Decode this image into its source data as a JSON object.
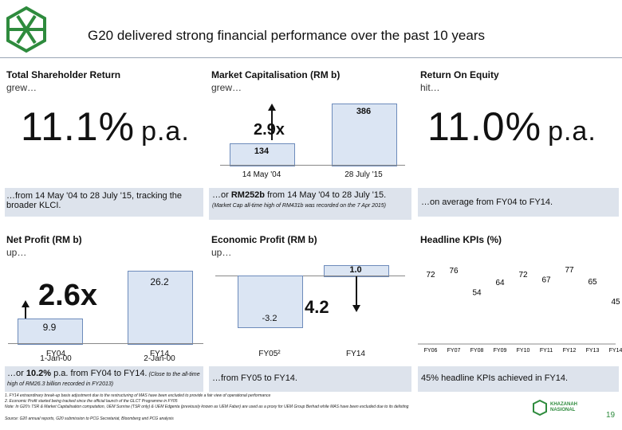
{
  "title": "G20 delivered strong financial performance over the past 10 years",
  "panels": {
    "tsr": {
      "heading": "Total Shareholder Return",
      "sub": "grew…",
      "big": "11.1%",
      "pa": "p.a.",
      "note": "…from 14 May '04 to 28 July '15, tracking the broader KLCI."
    },
    "mcap": {
      "heading": "Market Capitalisation (RM b)",
      "sub": "grew…",
      "mult": "2.9x",
      "bar1_value": "134",
      "bar2_value": "386",
      "x1": "14 May '04",
      "x2": "28 July '15",
      "note_prefix": "…or ",
      "note_bold": "RM252b",
      "note_rest": " from 14 May '04 to 28 July '15.",
      "note_small": "(Market Cap all-time high of RM431b was recorded on the 7 Apr 2015)"
    },
    "roe": {
      "heading": "Return On Equity",
      "sub": "hit…",
      "big": "11.0%",
      "pa": "p.a.",
      "note": "…on average from FY04 to FY14."
    },
    "np": {
      "heading": "Net Profit (RM b)",
      "sub": "up…",
      "mult": "2.6x",
      "bar1_value": "9.9",
      "bar2_value": "26.2",
      "x1": "FY04",
      "x1b": "1-Jan-00",
      "x2": "FY14",
      "x2b": "2-Jan-00",
      "note_prefix": "…or ",
      "note_bold": "10.2%",
      "note_rest": " p.a. from FY04 to FY14.",
      "note_small": " (Close to the all-time high of RM26.3 billion recorded in FY2013)"
    },
    "ep": {
      "heading": "Economic Profit (RM b)",
      "sub": "up…",
      "mult": "4.2",
      "bar1_value": "-3.2",
      "bar2_value": "1.0",
      "x1": "FY05²",
      "x2": "FY14",
      "note": "…from FY05 to FY14."
    },
    "kpi": {
      "heading": "Headline KPIs (%)",
      "note": "45% headline KPIs achieved in FY14."
    }
  },
  "chart_data": {
    "type": "line",
    "title": "Headline KPIs (%)",
    "categories": [
      "FY06",
      "FY07",
      "FY08",
      "FY09",
      "FY10",
      "FY11",
      "FY12",
      "FY13",
      "FY14"
    ],
    "values": [
      72,
      76,
      54,
      64,
      72,
      67,
      77,
      65,
      45
    ]
  },
  "footnotes": {
    "f1": "1.    FY14 extraordinary break-up basis adjustment due to the restructuring of MAS have been excluded to provide a fair view of operational performance",
    "f2": "2.    Economic Profit started being tracked since the official launch of the GLCT Programme in FY05",
    "f3": "Note: In G20's TSR & Market Capitalisation computation, UEM Sunrise (TSR only) & UEM Edgenta (previously known as UEM Faber) are used as a proxy for UEM Group Berhad while MAS have been excluded due to its delisting",
    "f4": "Source: G20 annual reports, G20 submission to PCG Secretariat, Bloomberg and PCG analysis"
  },
  "brand": {
    "name1": "KHAZANAH",
    "name2": "NASIONAL",
    "page": "19"
  },
  "colors": {
    "brand_green": "#2e8b3d",
    "bar_fill": "#dbe5f3",
    "bar_border": "#6d8bbb",
    "band": "#dde3ec"
  }
}
